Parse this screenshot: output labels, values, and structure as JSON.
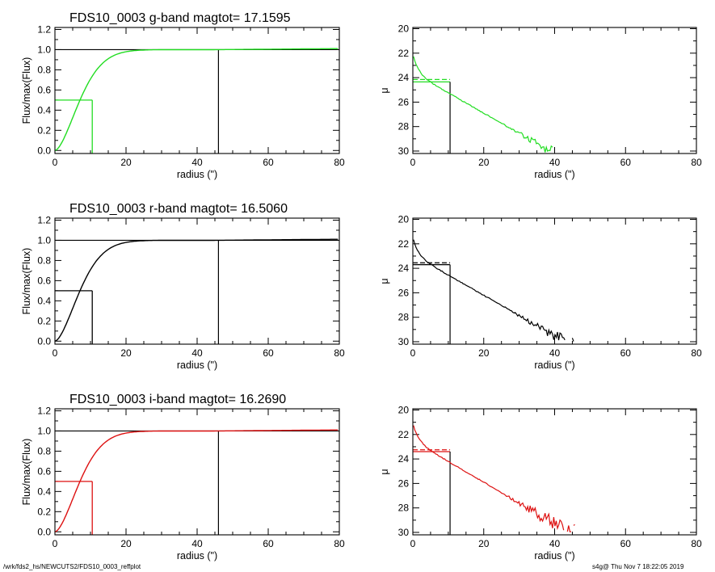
{
  "footer": {
    "path": "/wrk/fds2_hs/NEWCUTS2/FDS10_0003_reffplot",
    "stamp": "s4g@  Thu Nov  7 18:22:05 2019"
  },
  "colors": {
    "g": "#22dd22",
    "r": "#000000",
    "i": "#dd1111",
    "axis": "#000000"
  },
  "chart_data": [
    {
      "type": "line",
      "band": "g",
      "title": "FDS10_0003 g-band  magtot=      17.1595",
      "xlabel": "radius (\")",
      "ylabel": "Flux/max(Flux)",
      "xlim": [
        0,
        80
      ],
      "ylim": [
        -0.03,
        1.22
      ],
      "xticks": [
        0,
        20,
        40,
        60,
        80
      ],
      "xtick_labels": [
        "0",
        "20",
        "40",
        "60",
        "80"
      ],
      "yticks": [
        0,
        0.2,
        0.4,
        0.6,
        0.8,
        1.0,
        1.2
      ],
      "ytick_labels": [
        "0.0",
        "0.2",
        "0.4",
        "0.6",
        "0.8",
        "1.0",
        "1.2"
      ],
      "r_half": 10.5,
      "r_total": 46,
      "curve_scale": 8.8,
      "curve_power": 1.65,
      "marker_color": "#22dd22"
    },
    {
      "type": "line",
      "band": "g",
      "xlabel": "radius (\")",
      "ylabel": "μ",
      "xlim": [
        0,
        80
      ],
      "ylim": [
        30.2,
        19.9
      ],
      "inverted_y": true,
      "xticks": [
        0,
        20,
        40,
        60,
        80
      ],
      "xtick_labels": [
        "0",
        "20",
        "40",
        "60",
        "80"
      ],
      "yticks": [
        20,
        22,
        24,
        26,
        28,
        30
      ],
      "ytick_labels": [
        "20",
        "22",
        "24",
        "26",
        "28",
        "30"
      ],
      "mu_center": 22.1,
      "mu_knee": 23.6,
      "slope": 0.165,
      "r_half": 10.5,
      "mu_half": 24.35,
      "mu_mean": 24.15,
      "r_end": 49,
      "noise": 0.5
    },
    {
      "type": "line",
      "band": "r",
      "title": "FDS10_0003 r-band  magtot=      16.5060",
      "xlabel": "radius (\")",
      "ylabel": "Flux/max(Flux)",
      "xlim": [
        0,
        80
      ],
      "ylim": [
        -0.03,
        1.22
      ],
      "xticks": [
        0,
        20,
        40,
        60,
        80
      ],
      "xtick_labels": [
        "0",
        "20",
        "40",
        "60",
        "80"
      ],
      "yticks": [
        0,
        0.2,
        0.4,
        0.6,
        0.8,
        1.0,
        1.2
      ],
      "ytick_labels": [
        "0.0",
        "0.2",
        "0.4",
        "0.6",
        "0.8",
        "1.0",
        "1.2"
      ],
      "r_half": 10.5,
      "r_total": 46,
      "curve_scale": 8.8,
      "curve_power": 1.65,
      "marker_color": "#000000"
    },
    {
      "type": "line",
      "band": "r",
      "xlabel": "radius (\")",
      "ylabel": "μ",
      "xlim": [
        0,
        80
      ],
      "ylim": [
        30.2,
        19.9
      ],
      "inverted_y": true,
      "xticks": [
        0,
        20,
        40,
        60,
        80
      ],
      "xtick_labels": [
        "0",
        "20",
        "40",
        "60",
        "80"
      ],
      "yticks": [
        20,
        22,
        24,
        26,
        28,
        30
      ],
      "ytick_labels": [
        "20",
        "22",
        "24",
        "26",
        "28",
        "30"
      ],
      "mu_center": 21.5,
      "mu_knee": 22.9,
      "slope": 0.165,
      "r_half": 10.5,
      "mu_half": 23.7,
      "mu_mean": 23.55,
      "r_end": 49,
      "noise": 0.45
    },
    {
      "type": "line",
      "band": "i",
      "title": "FDS10_0003 i-band  magtot=      16.2690",
      "xlabel": "radius (\")",
      "ylabel": "Flux/max(Flux)",
      "xlim": [
        0,
        80
      ],
      "ylim": [
        -0.03,
        1.22
      ],
      "xticks": [
        0,
        20,
        40,
        60,
        80
      ],
      "xtick_labels": [
        "0",
        "20",
        "40",
        "60",
        "80"
      ],
      "yticks": [
        0,
        0.2,
        0.4,
        0.6,
        0.8,
        1.0,
        1.2
      ],
      "ytick_labels": [
        "0.0",
        "0.2",
        "0.4",
        "0.6",
        "0.8",
        "1.0",
        "1.2"
      ],
      "r_half": 10.5,
      "r_total": 46,
      "curve_scale": 8.8,
      "curve_power": 1.65,
      "marker_color": "#dd1111"
    },
    {
      "type": "line",
      "band": "i",
      "xlabel": "radius (\")",
      "ylabel": "μ",
      "xlim": [
        0,
        80
      ],
      "ylim": [
        30.2,
        19.9
      ],
      "inverted_y": true,
      "xticks": [
        0,
        20,
        40,
        60,
        80
      ],
      "xtick_labels": [
        "0",
        "20",
        "40",
        "60",
        "80"
      ],
      "yticks": [
        20,
        22,
        24,
        26,
        28,
        30
      ],
      "ytick_labels": [
        "20",
        "22",
        "24",
        "26",
        "28",
        "30"
      ],
      "mu_center": 21.1,
      "mu_knee": 22.5,
      "slope": 0.17,
      "r_half": 10.5,
      "mu_half": 23.4,
      "mu_mean": 23.25,
      "r_end": 79,
      "noise": 0.65
    }
  ]
}
